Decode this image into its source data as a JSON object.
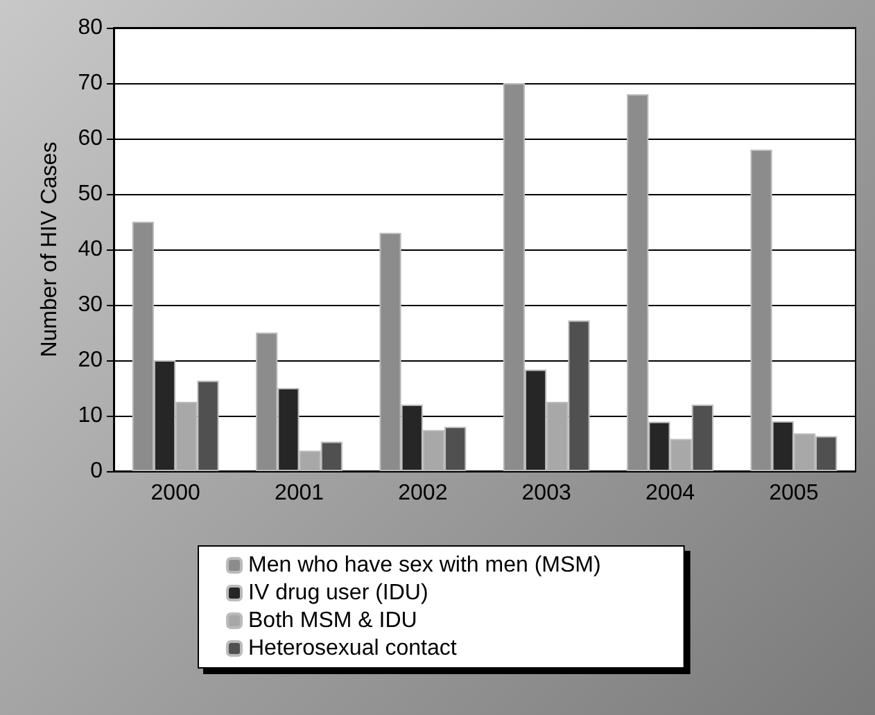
{
  "chart_data": {
    "type": "bar",
    "ylabel": "Number of HIV Cases",
    "categories": [
      "2000",
      "2001",
      "2002",
      "2003",
      "2004",
      "2005"
    ],
    "series": [
      {
        "name": "Men who have sex with men (MSM)",
        "color": "#8c8c8c",
        "values": [
          45,
          25,
          43,
          70,
          68,
          58
        ]
      },
      {
        "name": "IV drug user (IDU)",
        "color": "#262626",
        "values": [
          20,
          15,
          12,
          18.3,
          8.9,
          9
        ]
      },
      {
        "name": "Both MSM & IDU",
        "color": "#a8a8a8",
        "values": [
          12.5,
          3.7,
          7.4,
          12.5,
          5.8,
          6.8
        ]
      },
      {
        "name": "Heterosexual contact",
        "color": "#505050",
        "values": [
          16.3,
          5.3,
          8,
          27.2,
          12,
          6.3
        ]
      }
    ],
    "ylim": [
      0,
      80
    ],
    "yticks": [
      0,
      10,
      20,
      30,
      40,
      50,
      60,
      70,
      80
    ],
    "grid": "y",
    "legend": "bottom"
  }
}
